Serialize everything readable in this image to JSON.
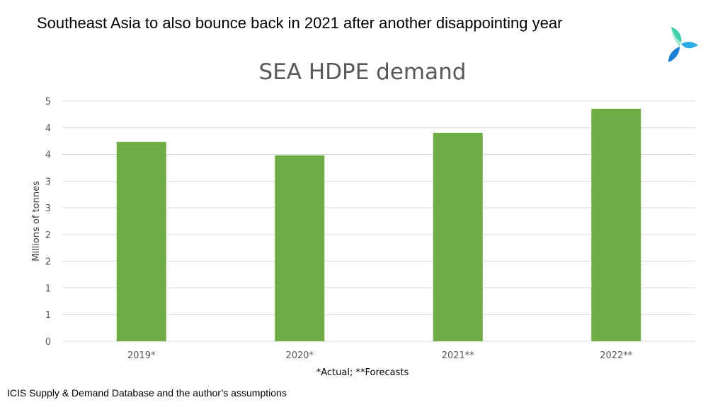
{
  "slide": {
    "title": "Southeast Asia to also bounce back in 2021 after another disappointing  year",
    "footnote": "*Actual; **Forecasts",
    "source": "ICIS Supply & Demand Database and the author’s assumptions",
    "logo_icon": "triangle-swirl-logo-icon"
  },
  "chart_data": {
    "type": "bar",
    "title": "SEA HDPE demand",
    "xlabel": "",
    "ylabel": "Millions of tonnes",
    "categories": [
      "2019*",
      "2020*",
      "2021**",
      "2022**"
    ],
    "values": [
      4.15,
      3.87,
      4.34,
      4.84
    ],
    "ylim": [
      0,
      5
    ],
    "y_tick_labels": [
      "0",
      "1",
      "1",
      "2",
      "2",
      "3",
      "3",
      "4",
      "4",
      "5"
    ],
    "grid": true,
    "legend": "none",
    "bar_color": "#70ad47",
    "grid_color": "#d9d9d9"
  }
}
